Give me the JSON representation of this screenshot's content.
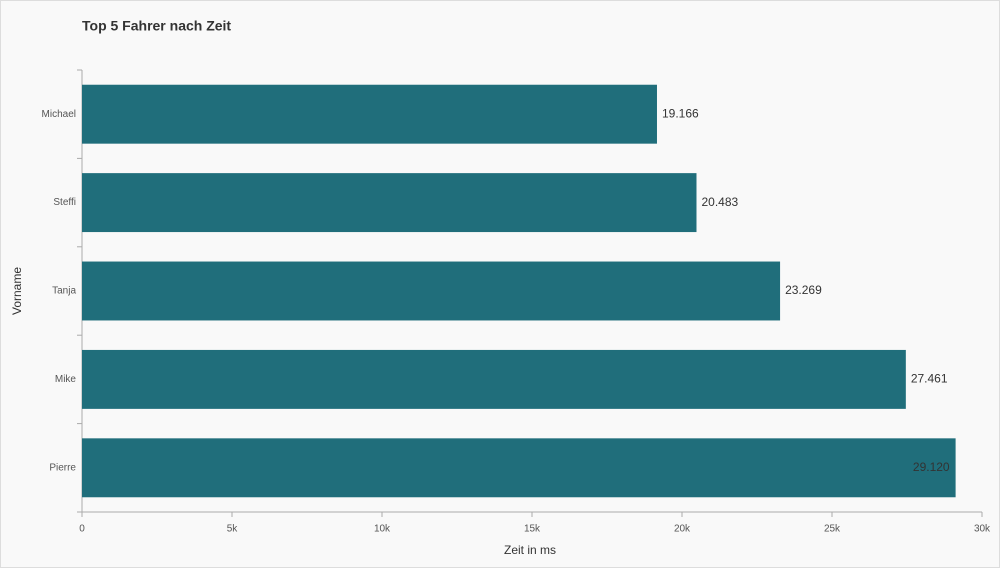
{
  "chart_data": {
    "type": "bar",
    "orientation": "horizontal",
    "title": "Top 5 Fahrer nach Zeit",
    "x_label": "Zeit in ms",
    "y_label": "Vorname",
    "categories": [
      "Michael",
      "Steffi",
      "Tanja",
      "Mike",
      "Pierre"
    ],
    "values": [
      19166,
      20483,
      23269,
      27461,
      29120
    ],
    "value_labels": [
      "19.166",
      "20.483",
      "23.269",
      "27.461",
      "29.120"
    ],
    "color": "#206e7b",
    "xlim": [
      0,
      30000
    ],
    "xticks": [
      0,
      {
        "value": 5000,
        "label": "5k"
      },
      {
        "value": 10000,
        "label": "10k"
      },
      {
        "value": 15000,
        "label": "15k"
      },
      {
        "value": 20000,
        "label": "20k"
      },
      {
        "value": 25000,
        "label": "25k"
      },
      {
        "value": 30000,
        "label": "30k"
      }
    ],
    "grid": false
  }
}
